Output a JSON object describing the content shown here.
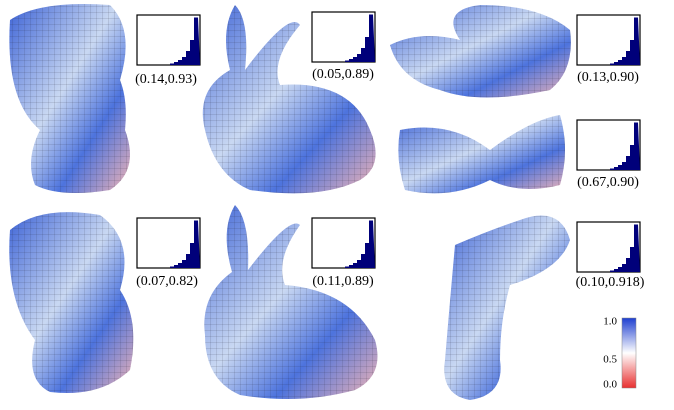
{
  "panels": [
    {
      "label": "(0.14,0.93)"
    },
    {
      "label": "(0.05,0.89)"
    },
    {
      "label": "(0.13,0.90)"
    },
    {
      "label": "(0.67,0.90)"
    },
    {
      "label": "(0.07,0.82)"
    },
    {
      "label": "(0.11,0.89)"
    },
    {
      "label": "(0.10,0.918)"
    }
  ],
  "colorbar": {
    "labels": [
      "1.0",
      "0.5",
      "0.0"
    ]
  }
}
